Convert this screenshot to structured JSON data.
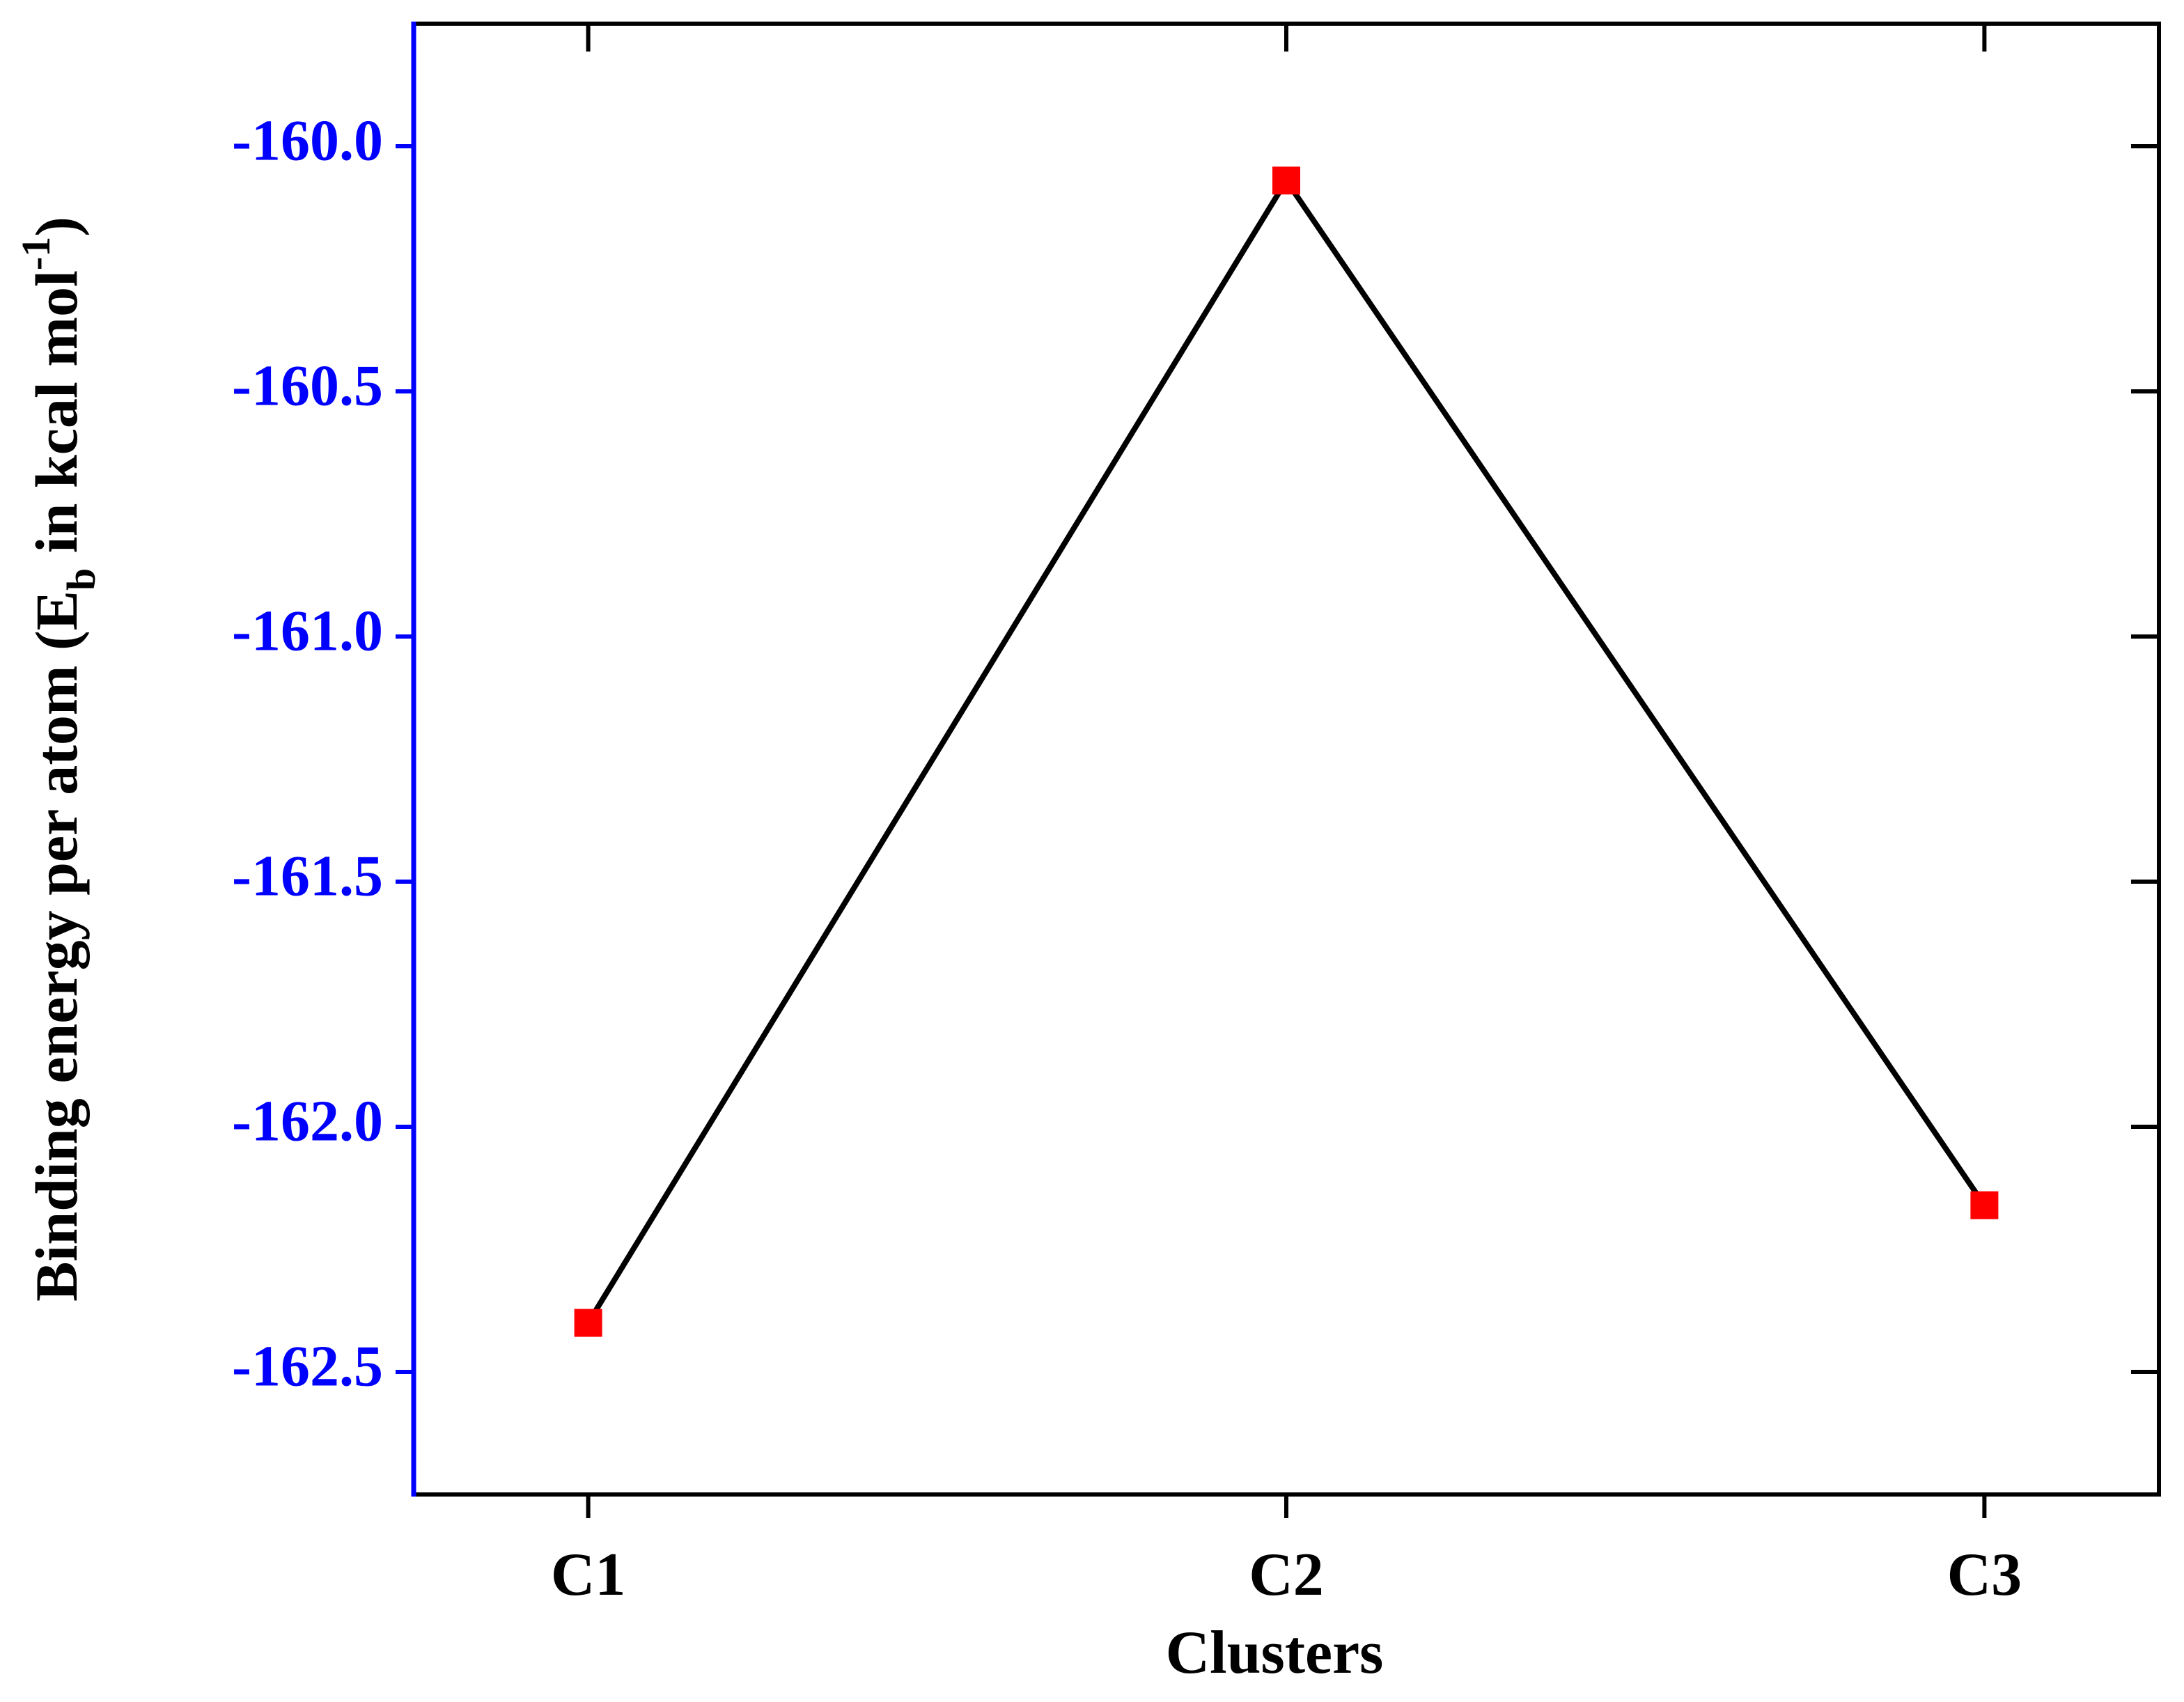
{
  "chart_data": {
    "type": "line",
    "xlabel": "Clusters",
    "ylabel_parts": [
      "Binding energy per atom (E",
      "b",
      " in kcal mol",
      "-1",
      ")"
    ],
    "categories": [
      "C1",
      "C2",
      "C3"
    ],
    "series": [
      {
        "name": "Binding energy",
        "color": "#ff0000",
        "line_color": "#000000",
        "values": [
          -162.4,
          -160.07,
          -162.16
        ]
      }
    ],
    "ylim": [
      -162.75,
      -159.75
    ],
    "yticks": [
      {
        "value": -160,
        "label": "-160.0"
      },
      -160.5,
      {
        "value": -161,
        "label": "-161.0"
      },
      -161.5,
      {
        "value": -162,
        "label": "-162.0"
      },
      -162.5
    ],
    "y_axis_color": "#0000ff"
  }
}
